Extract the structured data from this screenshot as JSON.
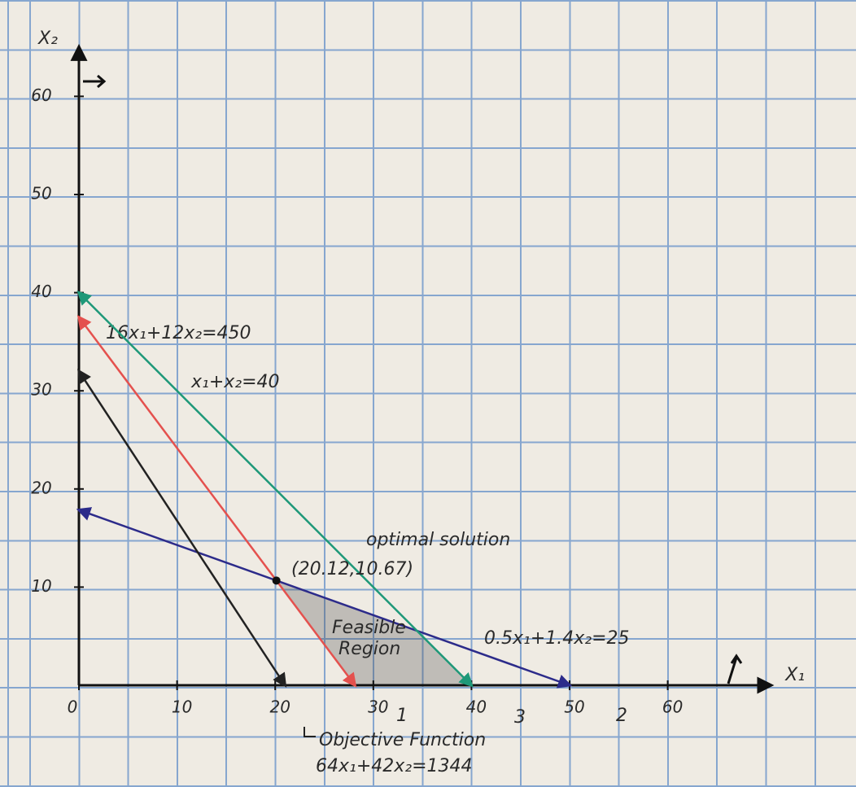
{
  "chart_data": {
    "type": "line",
    "x_label": "X₁",
    "y_label": "X₂",
    "xlim": [
      0,
      70.5
    ],
    "ylim": [
      0,
      65
    ],
    "xticks": [
      0,
      10,
      20,
      30,
      40,
      50,
      60
    ],
    "yticks": [
      10,
      20,
      30,
      40,
      50,
      60
    ],
    "grid": true,
    "series": [
      {
        "name": "1",
        "equation": "16x₁+12x₂=450",
        "color": "#e4514e",
        "x": [
          0,
          28.125
        ],
        "values": [
          37.5,
          0
        ]
      },
      {
        "name": "2",
        "equation": "0.5x₁+1.4x₂=25",
        "color": "#2c2b8a",
        "x": [
          0,
          50
        ],
        "values": [
          17.86,
          0
        ]
      },
      {
        "name": "3",
        "equation": "x₁+x₂=40",
        "color": "#1e9878",
        "x": [
          0,
          40
        ],
        "values": [
          40,
          0
        ]
      },
      {
        "name": "Objective Function",
        "equation": "64x₁+42x₂=1344",
        "color": "#222222",
        "x": [
          0,
          21
        ],
        "values": [
          32,
          0
        ]
      }
    ],
    "optimal": {
      "title": "optimal solution",
      "label": "(20.12,10.67)",
      "x": 20.12,
      "y": 10.67
    },
    "region": {
      "label_lines": [
        "Feasible",
        "Region"
      ],
      "x": [
        20.12,
        34.44,
        40,
        28.125
      ],
      "y": [
        10.67,
        5.56,
        0,
        0
      ]
    }
  }
}
